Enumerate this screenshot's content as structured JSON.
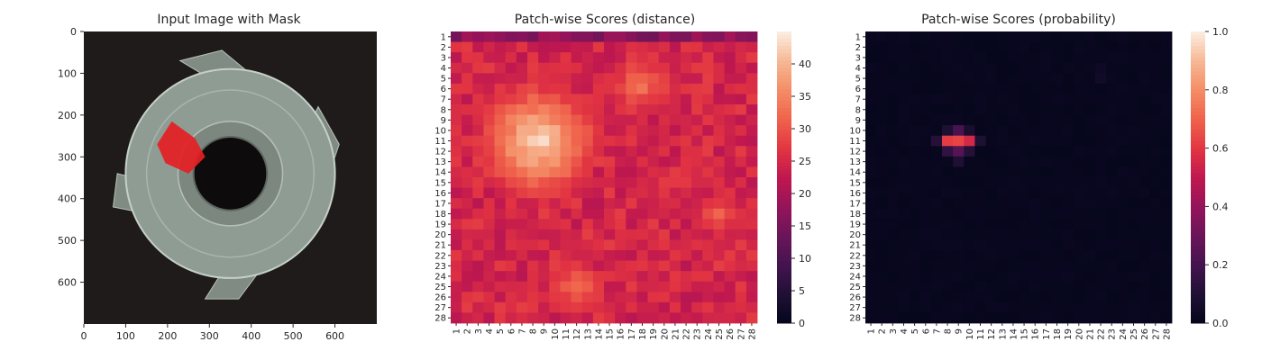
{
  "chart_data": [
    {
      "type": "image",
      "title": "Input Image with Mask",
      "xticks": [
        "0",
        "100",
        "200",
        "300",
        "400",
        "500",
        "600"
      ],
      "yticks": [
        "0",
        "100",
        "200",
        "300",
        "400",
        "500",
        "600"
      ],
      "xlim": [
        0,
        700
      ],
      "ylim": [
        700,
        0
      ],
      "image_description_colors": {
        "background": "#1f1b1a",
        "part": "#8f9c93",
        "mask": "#e41f23"
      }
    },
    {
      "type": "heatmap",
      "title": "Patch-wise Scores (distance)",
      "rows": 28,
      "cols": 28,
      "row_labels": [
        "1",
        "2",
        "3",
        "4",
        "5",
        "6",
        "7",
        "8",
        "9",
        "10",
        "11",
        "12",
        "13",
        "14",
        "15",
        "16",
        "17",
        "18",
        "19",
        "20",
        "21",
        "22",
        "23",
        "24",
        "25",
        "26",
        "27",
        "28"
      ],
      "col_labels": [
        "1",
        "2",
        "3",
        "4",
        "5",
        "6",
        "7",
        "8",
        "9",
        "10",
        "11",
        "12",
        "13",
        "14",
        "15",
        "16",
        "17",
        "18",
        "19",
        "20",
        "21",
        "22",
        "23",
        "24",
        "25",
        "26",
        "27",
        "28"
      ],
      "colorbar_ticks": [
        "0",
        "5",
        "10",
        "15",
        "20",
        "25",
        "30",
        "35",
        "40"
      ],
      "vmin": 0,
      "vmax": 45,
      "colormap": "rocket",
      "hot_regions": [
        {
          "row": 11,
          "col": 8.5,
          "peak": 44
        },
        {
          "row": 5.5,
          "col": 18,
          "peak": 34
        },
        {
          "row": 18,
          "col": 25,
          "peak": 32
        },
        {
          "row": 25,
          "col": 12,
          "peak": 33
        }
      ],
      "base_value": 25
    },
    {
      "type": "heatmap",
      "title": "Patch-wise Scores (probability)",
      "rows": 28,
      "cols": 28,
      "row_labels": [
        "1",
        "2",
        "3",
        "4",
        "5",
        "6",
        "7",
        "8",
        "9",
        "10",
        "11",
        "12",
        "13",
        "14",
        "15",
        "16",
        "17",
        "18",
        "19",
        "20",
        "21",
        "22",
        "23",
        "24",
        "25",
        "26",
        "27",
        "28"
      ],
      "col_labels": [
        "1",
        "2",
        "3",
        "4",
        "5",
        "6",
        "7",
        "8",
        "9",
        "10",
        "11",
        "12",
        "13",
        "14",
        "15",
        "16",
        "17",
        "18",
        "19",
        "20",
        "21",
        "22",
        "23",
        "24",
        "25",
        "26",
        "27",
        "28"
      ],
      "colorbar_ticks": [
        "0.0",
        "0.2",
        "0.4",
        "0.6",
        "0.8",
        "1.0"
      ],
      "vmin": 0,
      "vmax": 1,
      "colormap": "rocket",
      "hot_cells": [
        {
          "row": 11,
          "col": 8,
          "value": 0.62
        },
        {
          "row": 11,
          "col": 9,
          "value": 0.64
        },
        {
          "row": 11,
          "col": 10,
          "value": 0.56
        },
        {
          "row": 10,
          "col": 9,
          "value": 0.22
        },
        {
          "row": 12,
          "col": 9,
          "value": 0.25
        },
        {
          "row": 12,
          "col": 8,
          "value": 0.15
        },
        {
          "row": 12,
          "col": 10,
          "value": 0.12
        },
        {
          "row": 10,
          "col": 8,
          "value": 0.1
        },
        {
          "row": 10,
          "col": 10,
          "value": 0.08
        },
        {
          "row": 13,
          "col": 9,
          "value": 0.1
        },
        {
          "row": 11,
          "col": 7,
          "value": 0.12
        },
        {
          "row": 11,
          "col": 11,
          "value": 0.1
        },
        {
          "row": 5,
          "col": 22,
          "value": 0.05
        },
        {
          "row": 4,
          "col": 22,
          "value": 0.04
        }
      ]
    }
  ]
}
